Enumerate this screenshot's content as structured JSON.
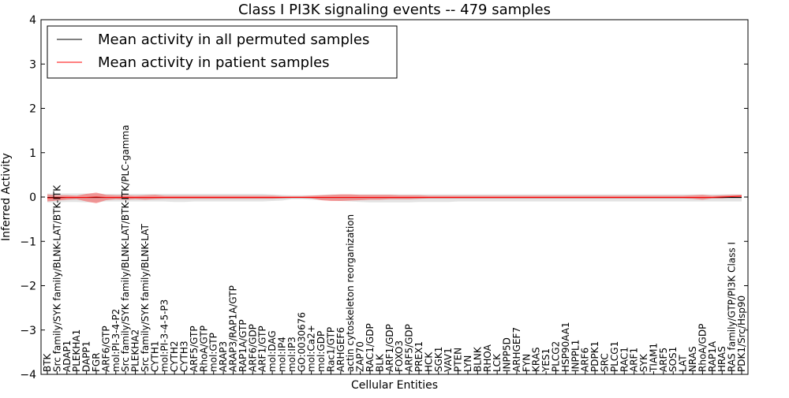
{
  "chart_data": {
    "type": "line",
    "title": "Class I PI3K signaling events -- 479 samples",
    "xlabel": "Cellular Entities",
    "ylabel": "Inferred Activity",
    "ylim": [
      -4,
      4
    ],
    "yticks": [
      -4,
      -3,
      -2,
      -1,
      0,
      1,
      2,
      3,
      4
    ],
    "ytick_labels": [
      "−4",
      "−3",
      "−2",
      "−1",
      "0",
      "1",
      "2",
      "3",
      "4"
    ],
    "grid": false,
    "legend_position": "top-left",
    "categories": [
      "BTK",
      "Src family/SYK family/BLNK-LAT/BTK-ITK",
      "ADAP1",
      "PLEKHA1",
      "DAPP1",
      "FGR",
      "ARF6/GTP",
      "mol:PI-3-4-P2",
      "Src family/SYK family/BLNK-LAT/BTK-ITK/PLC-gamma",
      "PLEKHA2",
      "Src family/SYK family/BLNK-LAT",
      "CYTH1",
      "mol:PI-3-4-5-P3",
      "CYTH2",
      "CYTH3",
      "ARF5/GTP",
      "RhoA/GTP",
      "mol:GTP",
      "ARAP3",
      "ARAP3/RAP1A/GTP",
      "RAP1A/GTP",
      "ARF6/GDP",
      "ARF1/GTP",
      "mol:DAG",
      "mol:IP4",
      "mol:IP3",
      "GO:0030676",
      "mol:Ca2+",
      "mol:GDP",
      "Rac1/GTP",
      "ARHGEF6",
      "actin cytoskeleton reorganization",
      "ZAP70",
      "RAC1/GDP",
      "BLK",
      "ARF1/GDP",
      "FOXO3",
      "ARF5/GDP",
      "PREX1",
      "HCK",
      "SGK1",
      "VAV1",
      "PTEN",
      "LYN",
      "BLNK",
      "RHOA",
      "LCK",
      "INPP5D",
      "ARHGEF7",
      "FYN",
      "KRAS",
      "YES1",
      "PLCG2",
      "HSP90AA1",
      "INPPL1",
      "ARF6",
      "PDPK1",
      "SRC",
      "PLCG1",
      "RAC1",
      "ARF1",
      "SYK",
      "TIAM1",
      "ARF5",
      "SOS1",
      "LAT",
      "NRAS",
      "RhoA/GDP",
      "RAP1A",
      "HRAS",
      "RAS family/GTP/PI3K Class I",
      "PDK1/Src/Hsp90"
    ],
    "series": [
      {
        "name": "Mean activity in all permuted samples",
        "color": "#000000",
        "values": [
          -0.01,
          -0.01,
          -0.01,
          -0.01,
          -0.01,
          -0.01,
          -0.01,
          -0.01,
          -0.01,
          -0.01,
          -0.01,
          -0.01,
          -0.01,
          -0.01,
          -0.01,
          -0.01,
          -0.01,
          -0.01,
          -0.01,
          -0.01,
          -0.01,
          -0.01,
          -0.01,
          -0.01,
          -0.01,
          -0.01,
          -0.01,
          -0.01,
          -0.01,
          -0.01,
          -0.01,
          -0.01,
          -0.01,
          -0.01,
          -0.01,
          -0.01,
          -0.01,
          -0.01,
          -0.01,
          -0.01,
          -0.01,
          -0.01,
          -0.01,
          -0.01,
          -0.01,
          -0.01,
          -0.01,
          -0.01,
          -0.01,
          -0.01,
          -0.01,
          -0.01,
          -0.01,
          -0.01,
          -0.01,
          -0.01,
          -0.01,
          -0.01,
          -0.01,
          -0.01,
          -0.01,
          -0.01,
          -0.01,
          -0.01,
          -0.01,
          -0.01,
          -0.01,
          -0.01,
          -0.01,
          -0.01,
          -0.01,
          -0.01
        ],
        "band_low": [
          -0.12,
          -0.12,
          -0.11,
          -0.11,
          -0.12,
          -0.12,
          -0.1,
          -0.1,
          -0.1,
          -0.1,
          -0.1,
          -0.1,
          -0.1,
          -0.11,
          -0.11,
          -0.1,
          -0.1,
          -0.1,
          -0.1,
          -0.1,
          -0.1,
          -0.1,
          -0.1,
          -0.09,
          -0.08,
          -0.05,
          -0.05,
          -0.06,
          -0.07,
          -0.08,
          -0.09,
          -0.1,
          -0.11,
          -0.12,
          -0.12,
          -0.12,
          -0.12,
          -0.12,
          -0.11,
          -0.11,
          -0.11,
          -0.11,
          -0.1,
          -0.1,
          -0.1,
          -0.1,
          -0.1,
          -0.1,
          -0.1,
          -0.1,
          -0.1,
          -0.1,
          -0.1,
          -0.1,
          -0.1,
          -0.1,
          -0.1,
          -0.1,
          -0.1,
          -0.1,
          -0.1,
          -0.1,
          -0.1,
          -0.1,
          -0.1,
          -0.1,
          -0.1,
          -0.1,
          -0.1,
          -0.1,
          -0.1,
          -0.1
        ],
        "band_high": [
          0.08,
          0.08,
          0.08,
          0.08,
          0.08,
          0.08,
          0.07,
          0.07,
          0.07,
          0.07,
          0.07,
          0.07,
          0.07,
          0.07,
          0.07,
          0.07,
          0.07,
          0.07,
          0.07,
          0.07,
          0.07,
          0.07,
          0.07,
          0.06,
          0.05,
          0.04,
          0.04,
          0.04,
          0.05,
          0.06,
          0.06,
          0.06,
          0.06,
          0.06,
          0.06,
          0.06,
          0.06,
          0.06,
          0.06,
          0.06,
          0.06,
          0.06,
          0.06,
          0.06,
          0.06,
          0.06,
          0.06,
          0.06,
          0.06,
          0.06,
          0.06,
          0.06,
          0.06,
          0.06,
          0.06,
          0.06,
          0.06,
          0.06,
          0.06,
          0.06,
          0.06,
          0.06,
          0.06,
          0.06,
          0.06,
          0.06,
          0.06,
          0.06,
          0.06,
          0.06,
          0.06,
          0.06
        ]
      },
      {
        "name": "Mean activity in patient samples",
        "color": "#ff0000",
        "values": [
          -0.02,
          -0.02,
          -0.01,
          -0.01,
          -0.01,
          0.0,
          -0.01,
          -0.01,
          -0.01,
          -0.01,
          -0.01,
          -0.01,
          -0.01,
          -0.01,
          -0.01,
          -0.01,
          -0.01,
          -0.01,
          -0.01,
          -0.01,
          -0.01,
          -0.01,
          -0.01,
          -0.01,
          -0.01,
          -0.01,
          -0.01,
          -0.01,
          -0.01,
          -0.01,
          -0.01,
          -0.01,
          -0.01,
          -0.01,
          -0.01,
          -0.01,
          -0.01,
          -0.01,
          -0.01,
          -0.01,
          -0.01,
          -0.01,
          -0.01,
          -0.01,
          -0.01,
          -0.01,
          -0.01,
          -0.01,
          -0.01,
          -0.01,
          -0.01,
          -0.01,
          -0.01,
          -0.01,
          -0.01,
          -0.01,
          -0.01,
          -0.01,
          -0.01,
          -0.01,
          -0.01,
          -0.01,
          -0.01,
          -0.01,
          -0.01,
          -0.01,
          -0.01,
          -0.01,
          -0.01,
          0.0,
          0.01,
          0.02
        ],
        "band_low": [
          -0.1,
          -0.08,
          -0.06,
          -0.05,
          -0.1,
          -0.14,
          -0.07,
          -0.05,
          -0.06,
          -0.05,
          -0.06,
          -0.05,
          -0.04,
          -0.04,
          -0.04,
          -0.04,
          -0.04,
          -0.04,
          -0.04,
          -0.04,
          -0.04,
          -0.04,
          -0.04,
          -0.04,
          -0.03,
          -0.02,
          -0.02,
          -0.03,
          -0.07,
          -0.09,
          -0.09,
          -0.08,
          -0.07,
          -0.06,
          -0.06,
          -0.05,
          -0.05,
          -0.05,
          -0.04,
          -0.03,
          -0.03,
          -0.03,
          -0.03,
          -0.03,
          -0.03,
          -0.03,
          -0.03,
          -0.03,
          -0.03,
          -0.03,
          -0.03,
          -0.03,
          -0.03,
          -0.03,
          -0.03,
          -0.03,
          -0.03,
          -0.03,
          -0.03,
          -0.03,
          -0.03,
          -0.03,
          -0.03,
          -0.03,
          -0.03,
          -0.03,
          -0.04,
          -0.06,
          -0.03,
          -0.03,
          -0.01,
          0.0
        ],
        "band_high": [
          0.06,
          0.04,
          0.04,
          0.03,
          0.07,
          0.1,
          0.05,
          0.04,
          0.04,
          0.03,
          0.04,
          0.05,
          0.03,
          0.03,
          0.03,
          0.03,
          0.03,
          0.03,
          0.03,
          0.03,
          0.03,
          0.03,
          0.03,
          0.03,
          0.02,
          0.02,
          0.02,
          0.03,
          0.04,
          0.05,
          0.06,
          0.06,
          0.05,
          0.05,
          0.05,
          0.05,
          0.04,
          0.04,
          0.04,
          0.03,
          0.03,
          0.03,
          0.03,
          0.03,
          0.03,
          0.03,
          0.03,
          0.03,
          0.03,
          0.03,
          0.03,
          0.03,
          0.03,
          0.03,
          0.03,
          0.03,
          0.03,
          0.03,
          0.03,
          0.03,
          0.03,
          0.03,
          0.03,
          0.03,
          0.03,
          0.03,
          0.04,
          0.05,
          0.03,
          0.04,
          0.05,
          0.05
        ]
      }
    ]
  }
}
